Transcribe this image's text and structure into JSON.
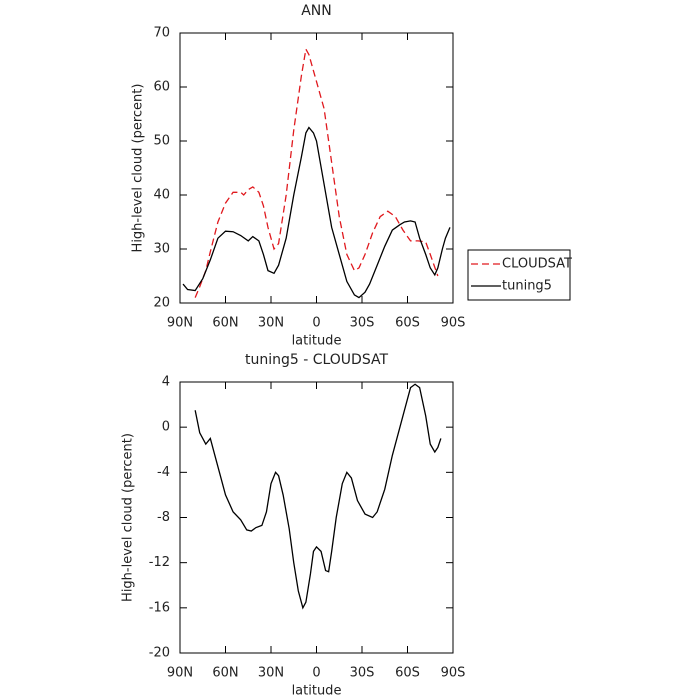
{
  "chart_data": [
    {
      "type": "line",
      "title": "ANN",
      "xlabel": "latitude",
      "ylabel": "High-level cloud (percent)",
      "xlim": [
        90,
        -90
      ],
      "xticks": [
        {
          "value": 90,
          "label": "90N"
        },
        {
          "value": 60,
          "label": "60N"
        },
        {
          "value": 30,
          "label": "30N"
        },
        0,
        {
          "value": -30,
          "label": "30S"
        },
        {
          "value": -60,
          "label": "60S"
        },
        {
          "value": -90,
          "label": "90S"
        }
      ],
      "ylim": [
        20,
        70
      ],
      "yticks": [
        20,
        30,
        40,
        50,
        60,
        70
      ],
      "legend": "right",
      "series": [
        {
          "name": "CLOUDSAT",
          "color": "#e0191e",
          "dash": true,
          "x": [
            80,
            77,
            73,
            70,
            65,
            60,
            55,
            50,
            48,
            45,
            42,
            38,
            35,
            32,
            28,
            25,
            20,
            15,
            10,
            7,
            5,
            2,
            0,
            -5,
            -10,
            -15,
            -20,
            -25,
            -28,
            -32,
            -37,
            -42,
            -47,
            -52,
            -57,
            -62,
            -67,
            -72,
            -75,
            -80
          ],
          "values": [
            21,
            23,
            26,
            29.5,
            35,
            38.5,
            40.5,
            40.5,
            40,
            41,
            41.5,
            40.5,
            38,
            34,
            30,
            31,
            40,
            52,
            62,
            67,
            66,
            63,
            61,
            56,
            46,
            36,
            29,
            26,
            26.5,
            29,
            33,
            36,
            37,
            36,
            33.5,
            31.5,
            31.5,
            31.3,
            29,
            25
          ]
        },
        {
          "name": "tuning5",
          "color": "#000000",
          "dash": false,
          "x": [
            88,
            85,
            80,
            75,
            70,
            65,
            60,
            55,
            50,
            45,
            42,
            38,
            35,
            32,
            28,
            25,
            20,
            15,
            10,
            7,
            5,
            2,
            0,
            -5,
            -10,
            -15,
            -20,
            -25,
            -28,
            -32,
            -35,
            -40,
            -45,
            -50,
            -55,
            -58,
            -62,
            -65,
            -68,
            -72,
            -75,
            -78,
            -80,
            -83,
            -85,
            -88
          ],
          "values": [
            23.5,
            22.5,
            22.3,
            24.5,
            28,
            32,
            33.3,
            33.2,
            32.5,
            31.5,
            32.3,
            31.5,
            29,
            26,
            25.5,
            27,
            32,
            40,
            47,
            51.5,
            52.5,
            51.5,
            50,
            42,
            34,
            29,
            24,
            21.5,
            21,
            22,
            23.5,
            27,
            30.5,
            33.5,
            34.5,
            35,
            35.2,
            35,
            32,
            29,
            26.5,
            25.2,
            26.5,
            30,
            32,
            34
          ]
        }
      ]
    },
    {
      "type": "line",
      "title": "tuning5 - CLOUDSAT",
      "xlabel": "latitude",
      "ylabel": "High-level cloud (percent)",
      "xlim": [
        90,
        -90
      ],
      "xticks": [
        {
          "value": 90,
          "label": "90N"
        },
        {
          "value": 60,
          "label": "60N"
        },
        {
          "value": 30,
          "label": "30N"
        },
        0,
        {
          "value": -30,
          "label": "30S"
        },
        {
          "value": -60,
          "label": "60S"
        },
        {
          "value": -90,
          "label": "90S"
        }
      ],
      "ylim": [
        -20,
        4
      ],
      "yticks": [
        -20,
        -16,
        -12,
        -8,
        -4,
        0,
        4
      ],
      "series": [
        {
          "color": "#000000",
          "dash": false,
          "x": [
            80,
            77,
            73,
            70,
            67,
            63,
            60,
            55,
            50,
            46,
            43,
            40,
            36,
            33,
            30,
            27,
            25,
            22,
            18,
            15,
            12,
            9,
            7,
            4,
            2,
            0,
            -3,
            -6,
            -8,
            -10,
            -13,
            -17,
            -20,
            -23,
            -27,
            -32,
            -37,
            -40,
            -45,
            -50,
            -55,
            -58,
            -62,
            -65,
            -68,
            -72,
            -75,
            -78,
            -80,
            -82
          ],
          "values": [
            1.5,
            -0.5,
            -1.5,
            -1,
            -2.5,
            -4.5,
            -6,
            -7.5,
            -8.2,
            -9.1,
            -9.2,
            -8.9,
            -8.7,
            -7.5,
            -5,
            -4,
            -4.3,
            -6,
            -9,
            -12,
            -14.5,
            -16,
            -15.5,
            -13,
            -11,
            -10.6,
            -11,
            -12.7,
            -12.8,
            -11,
            -8,
            -5,
            -4,
            -4.5,
            -6.5,
            -7.7,
            -8,
            -7.5,
            -5.5,
            -2.5,
            0,
            1.5,
            3.5,
            3.8,
            3.5,
            1,
            -1.5,
            -2.2,
            -1.8,
            -1
          ]
        }
      ]
    }
  ]
}
